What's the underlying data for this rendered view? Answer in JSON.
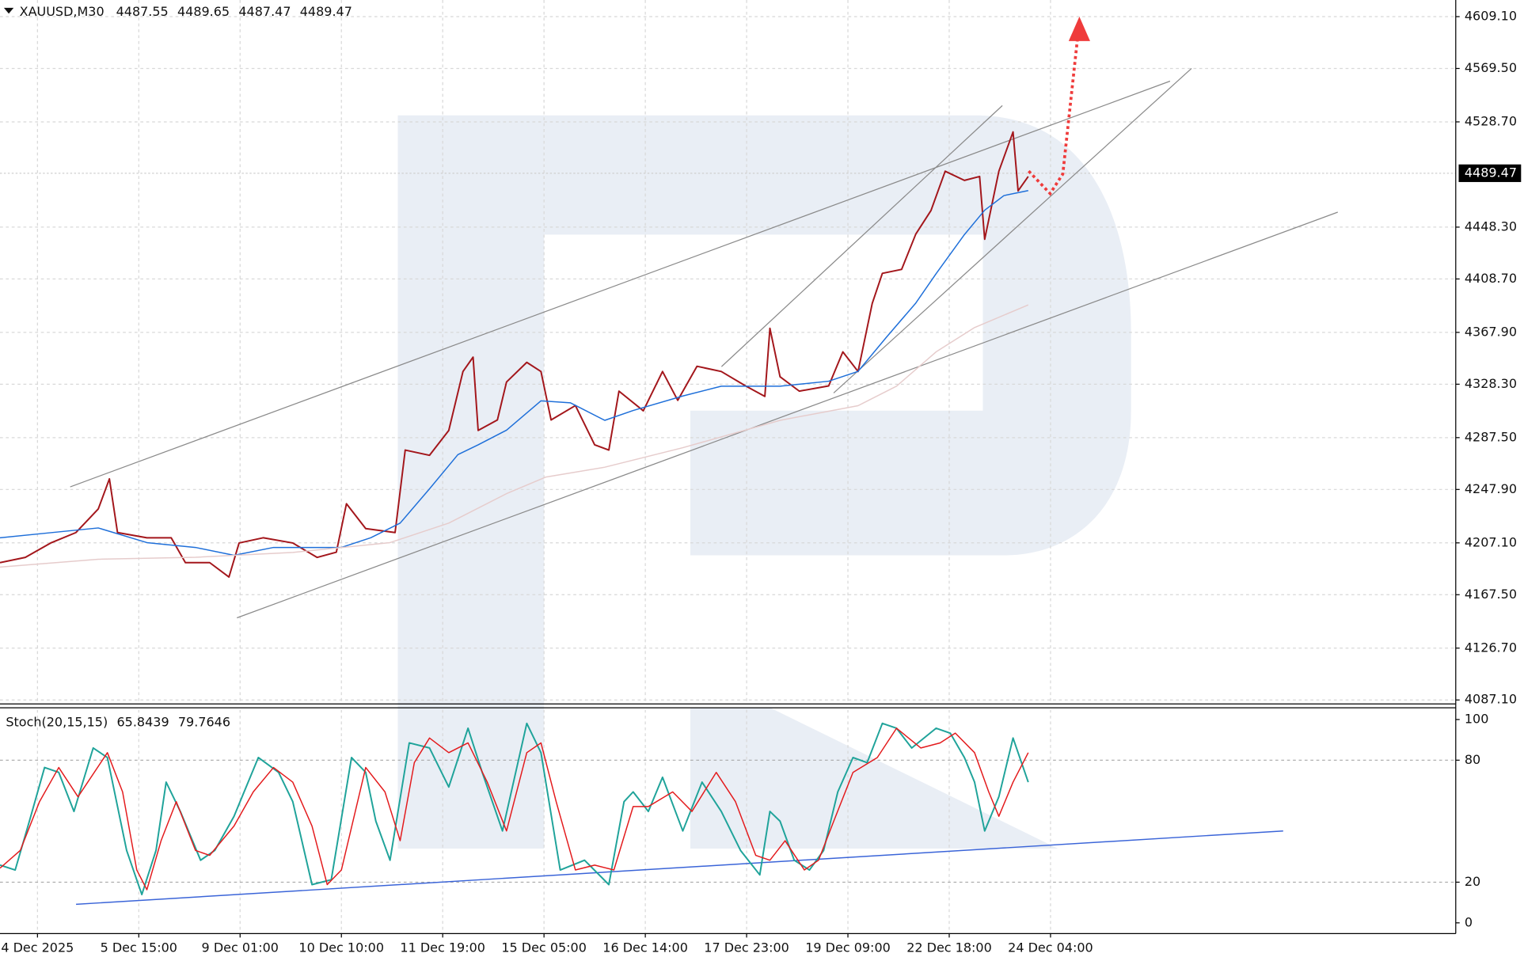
{
  "chart_data": [
    {
      "type": "line",
      "symbol": "XAUUSD,M30",
      "ohlc": [
        4487.55,
        4489.65,
        4487.47,
        4489.47
      ],
      "last_price": 4489.47,
      "xlim": [
        -0.37,
        14.0
      ],
      "ylim": [
        4084.1,
        4621.8
      ],
      "yticks": [
        {
          "value": 4609.1,
          "label": "4609.10"
        },
        {
          "value": 4569.5,
          "label": "4569.50"
        },
        {
          "value": 4528.7,
          "label": "4528.70"
        },
        {
          "value": 4448.3,
          "label": "4448.30"
        },
        {
          "value": 4408.7,
          "label": "4408.70"
        },
        {
          "value": 4367.9,
          "label": "4367.90"
        },
        {
          "value": 4328.3,
          "label": "4328.30"
        },
        {
          "value": 4287.5,
          "label": "4287.50"
        },
        {
          "value": 4247.9,
          "label": "4247.90"
        },
        {
          "value": 4207.1,
          "label": "4207.10"
        },
        {
          "value": 4167.5,
          "label": "4167.50"
        },
        {
          "value": 4126.7,
          "label": "4126.70"
        },
        {
          "value": 4087.1,
          "label": "4087.10"
        }
      ],
      "grid": true,
      "series": [
        {
          "color": "#a3161b",
          "x": [
            -0.37,
            -0.12,
            0.13,
            0.38,
            0.6,
            0.71,
            0.79,
            1.08,
            1.32,
            1.46,
            1.7,
            1.89,
            1.99,
            2.23,
            2.52,
            2.76,
            2.95,
            3.05,
            3.24,
            3.53,
            3.63,
            3.87,
            4.06,
            4.2,
            4.3,
            4.35,
            4.54,
            4.63,
            4.83,
            4.97,
            5.07,
            5.31,
            5.5,
            5.64,
            5.74,
            5.98,
            6.17,
            6.32,
            6.51,
            6.75,
            6.99,
            7.18,
            7.23,
            7.33,
            7.52,
            7.81,
            7.95,
            8.1,
            8.24,
            8.34,
            8.53,
            8.67,
            8.82,
            8.96,
            9.15,
            9.3,
            9.35,
            9.49,
            9.63,
            9.68,
            9.78
          ],
          "values": [
            4192,
            4196,
            4207,
            4215,
            4233,
            4256,
            4215,
            4211,
            4211,
            4192,
            4192,
            4181,
            4207,
            4211,
            4207,
            4196,
            4200,
            4237,
            4218,
            4215,
            4278,
            4274,
            4293,
            4338,
            4349,
            4293,
            4301,
            4330,
            4345,
            4338,
            4301,
            4312,
            4282,
            4278,
            4323,
            4308,
            4338,
            4316,
            4342,
            4338,
            4327,
            4319,
            4371,
            4334,
            4323,
            4327,
            4353,
            4338,
            4390,
            4413,
            4416,
            4443,
            4461,
            4491,
            4484,
            4487,
            4439,
            4491,
            4521,
            4476,
            4487
          ]
        },
        {
          "color": "#1e6fd9",
          "x": [
            -0.37,
            0.12,
            0.6,
            1.08,
            1.56,
            1.94,
            2.33,
            2.71,
            3,
            3.29,
            3.58,
            3.87,
            4.15,
            4.35,
            4.63,
            4.97,
            5.26,
            5.6,
            5.88,
            6.37,
            6.75,
            7.33,
            7.81,
            8.1,
            8.38,
            8.67,
            8.87,
            9.15,
            9.35,
            9.54,
            9.78
          ],
          "values": [
            4211.0,
            4214.8,
            4218.5,
            4207.3,
            4203.6,
            4197.6,
            4203.6,
            4203.6,
            4203.6,
            4211.0,
            4222.2,
            4248.4,
            4274.5,
            4282.0,
            4293.2,
            4315.6,
            4314.1,
            4300.7,
            4308.2,
            4319.3,
            4326.8,
            4326.8,
            4330.6,
            4338.1,
            4364.2,
            4390.3,
            4412.7,
            4442.6,
            4461.2,
            4472.4,
            4476.2
          ]
        },
        {
          "color": "#e6cccc",
          "x": [
            -0.37,
            0.6,
            1.56,
            2.52,
            3.48,
            4.06,
            4.63,
            5.02,
            5.6,
            6.37,
            7.33,
            8.1,
            8.48,
            8.87,
            9.25,
            9.78
          ],
          "values": [
            4188.6,
            4194.6,
            4196.1,
            4199.8,
            4207.3,
            4222.2,
            4244.7,
            4257.4,
            4264.9,
            4279.8,
            4300.7,
            4311.9,
            4326.8,
            4353.0,
            4371.6,
            4388.9
          ]
        }
      ]
    },
    {
      "type": "line",
      "title": "Stoch(20,15,15)",
      "indicator_values": [
        65.8439,
        79.7646
      ],
      "xlim": [
        -0.37,
        14.0
      ],
      "ylim": [
        -5.3,
        104.8
      ],
      "yticks": [
        100,
        80,
        20,
        0
      ],
      "levels": [
        80,
        20
      ],
      "xticks": [
        {
          "value": 0,
          "label": "4 Dec 2025"
        },
        {
          "value": 1,
          "label": "5 Dec 15:00"
        },
        {
          "value": 2,
          "label": "9 Dec 01:00"
        },
        {
          "value": 3,
          "label": "10 Dec 10:00"
        },
        {
          "value": 4,
          "label": "11 Dec 19:00"
        },
        {
          "value": 5,
          "label": "15 Dec 05:00"
        },
        {
          "value": 6,
          "label": "16 Dec 14:00"
        },
        {
          "value": 7,
          "label": "17 Dec 23:00"
        },
        {
          "value": 8,
          "label": "19 Dec 09:00"
        },
        {
          "value": 9,
          "label": "22 Dec 18:00"
        },
        {
          "value": 10,
          "label": "24 Dec 04:00"
        }
      ],
      "grid": true,
      "series": [
        {
          "color": "#1fa39a",
          "x": [
            -0.37,
            -0.22,
            -0.08,
            0.07,
            0.21,
            0.36,
            0.55,
            0.69,
            0.88,
            1.03,
            1.17,
            1.27,
            1.41,
            1.61,
            1.75,
            1.94,
            2.18,
            2.38,
            2.52,
            2.71,
            2.9,
            3.1,
            3.24,
            3.34,
            3.48,
            3.67,
            3.87,
            4.06,
            4.25,
            4.39,
            4.59,
            4.83,
            4.97,
            5.16,
            5.4,
            5.64,
            5.79,
            5.88,
            6.03,
            6.17,
            6.37,
            6.56,
            6.75,
            6.94,
            7.13,
            7.23,
            7.33,
            7.47,
            7.62,
            7.76,
            7.9,
            8.05,
            8.19,
            8.34,
            8.48,
            8.63,
            8.87,
            9.01,
            9.15,
            9.25,
            9.35,
            9.49,
            9.63,
            9.78
          ],
          "values": [
            28.4,
            26,
            50,
            76.4,
            74,
            54.8,
            86,
            81.3,
            35.6,
            13.9,
            35.6,
            69.2,
            54.8,
            30.8,
            35.6,
            52.4,
            81.3,
            74,
            59.6,
            18.8,
            21.2,
            81.3,
            74,
            50,
            30.8,
            88.5,
            86,
            66.8,
            95.7,
            74,
            45.2,
            98.1,
            83.7,
            26,
            30.8,
            18.8,
            59.6,
            64.4,
            54.8,
            71.6,
            45.2,
            69.2,
            54.8,
            35.6,
            23.6,
            54.8,
            50,
            30.8,
            26,
            35.6,
            64.4,
            81.3,
            78.8,
            98.1,
            95.7,
            86,
            95.7,
            93.3,
            81.3,
            69.2,
            45.2,
            62,
            90.9,
            69.2
          ]
        },
        {
          "color": "#e31a1c",
          "x": [
            -0.37,
            -0.17,
            0.02,
            0.21,
            0.4,
            0.69,
            0.84,
            0.98,
            1.08,
            1.22,
            1.37,
            1.56,
            1.7,
            1.94,
            2.13,
            2.33,
            2.52,
            2.71,
            2.86,
            3,
            3.24,
            3.43,
            3.58,
            3.72,
            3.87,
            4.06,
            4.25,
            4.44,
            4.63,
            4.83,
            4.97,
            5.12,
            5.31,
            5.5,
            5.69,
            5.88,
            6.03,
            6.27,
            6.46,
            6.7,
            6.89,
            7.09,
            7.23,
            7.38,
            7.57,
            7.71,
            7.86,
            8.05,
            8.29,
            8.48,
            8.72,
            8.91,
            9.06,
            9.25,
            9.39,
            9.49,
            9.63,
            9.78
          ],
          "values": [
            26.9,
            35.6,
            59.6,
            76.4,
            62,
            83.7,
            64.4,
            26,
            16.3,
            40.4,
            59.6,
            35.6,
            33.2,
            47.6,
            64.4,
            76.4,
            69.2,
            47.6,
            18.8,
            26,
            76.4,
            64.4,
            40.4,
            78.8,
            90.9,
            83.7,
            88.5,
            69.2,
            45.2,
            83.7,
            88.5,
            59.6,
            26,
            28.4,
            26,
            57.2,
            57.2,
            64.4,
            54.8,
            74,
            59.6,
            33.2,
            30.8,
            40.4,
            26,
            30.8,
            50,
            74,
            81.3,
            95.7,
            86,
            88.5,
            93.3,
            83.7,
            64.4,
            52.4,
            69.2,
            83.7
          ]
        }
      ]
    }
  ]
}
